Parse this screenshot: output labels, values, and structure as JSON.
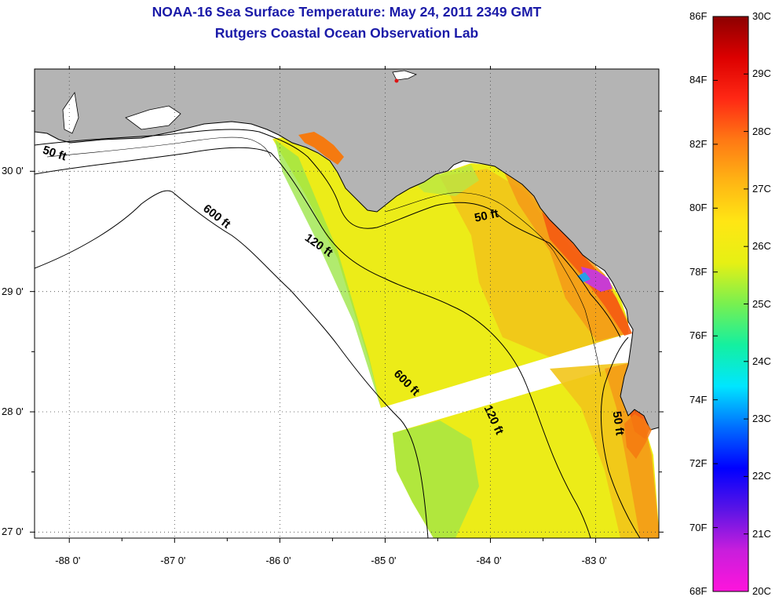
{
  "header": {
    "title": "NOAA-16 Sea Surface Temperature:  May 24, 2011 2349 GMT",
    "subtitle": "Rutgers Coastal Ocean Observation Lab"
  },
  "map": {
    "lon_range": [
      -88.33,
      -82.4
    ],
    "lat_range": [
      26.95,
      30.85
    ],
    "lon_ticks": [
      {
        "value": -88,
        "label": "-88 0'"
      },
      {
        "value": -87,
        "label": "-87 0'"
      },
      {
        "value": -86,
        "label": "-86 0'"
      },
      {
        "value": -85,
        "label": "-85 0'"
      },
      {
        "value": -84,
        "label": "-84 0'"
      },
      {
        "value": -83,
        "label": "-83 0'"
      }
    ],
    "lat_ticks": [
      {
        "value": 30,
        "label": "30 0'"
      },
      {
        "value": 29,
        "label": "29 0'"
      },
      {
        "value": 28,
        "label": "28 0'"
      },
      {
        "value": 27,
        "label": "27 0'"
      }
    ],
    "grid": "dotted",
    "depth_contour_labels": [
      {
        "text": "50 ft",
        "lon": -88.15,
        "lat": 30.12,
        "angle": 18
      },
      {
        "text": "600 ft",
        "lon": -86.62,
        "lat": 29.6,
        "angle": 38
      },
      {
        "text": "120 ft",
        "lon": -85.65,
        "lat": 29.36,
        "angle": 35
      },
      {
        "text": "50 ft",
        "lon": -84.03,
        "lat": 29.6,
        "angle": -12
      },
      {
        "text": "600 ft",
        "lon": -84.82,
        "lat": 28.22,
        "angle": 45
      },
      {
        "text": "120 ft",
        "lon": -84.0,
        "lat": 27.92,
        "angle": 65
      },
      {
        "text": "50 ft",
        "lon": -82.82,
        "lat": 27.9,
        "angle": 82
      }
    ],
    "colors": {
      "land": "#b4b4b4",
      "ocean_no_data": "#ffffff",
      "sst_dominant": "#ecec18",
      "sst_warm_nearshore": "#f57a10"
    }
  },
  "colorbar": {
    "labels_f": [
      "86F",
      "84F",
      "82F",
      "80F",
      "78F",
      "76F",
      "74F",
      "72F",
      "70F",
      "68F"
    ],
    "labels_c": [
      "30C",
      "29C",
      "28C",
      "27C",
      "26C",
      "25C",
      "24C",
      "23C",
      "22C",
      "21C",
      "20C"
    ],
    "stops": [
      "#ff14dc",
      "#c81edc",
      "#5a14e6",
      "#0000ff",
      "#006eff",
      "#00e6ff",
      "#14f0a0",
      "#78f050",
      "#e6f014",
      "#ffe614",
      "#ffb414",
      "#ff7814",
      "#ff2814",
      "#dc0000",
      "#8c0000"
    ]
  }
}
